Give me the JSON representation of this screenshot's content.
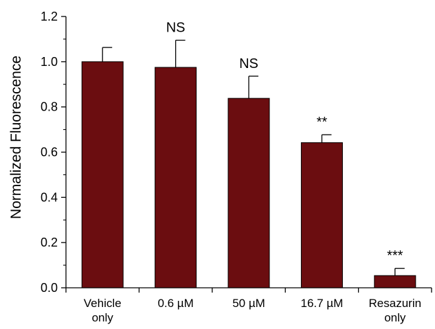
{
  "chart_data": {
    "type": "bar",
    "title": "",
    "xlabel": "",
    "ylabel": "Normalized Fluorescence",
    "ylim": [
      0,
      1.2
    ],
    "yticks": [
      "0.0",
      "0.2",
      "0.4",
      "0.6",
      "0.8",
      "1.0",
      "1.2"
    ],
    "grid": false,
    "categories": [
      [
        "Vehicle",
        "only"
      ],
      [
        "0.6 µM"
      ],
      [
        "50 µM"
      ],
      [
        "16.7 µM"
      ],
      [
        "Resazurin",
        "only"
      ]
    ],
    "values": [
      1.0,
      0.975,
      0.838,
      0.642,
      0.054
    ],
    "error_plus": [
      0.063,
      0.12,
      0.098,
      0.035,
      0.032
    ],
    "significance": [
      "",
      "NS",
      "NS",
      "**",
      "***"
    ],
    "bar_color": "#6b0d10"
  }
}
